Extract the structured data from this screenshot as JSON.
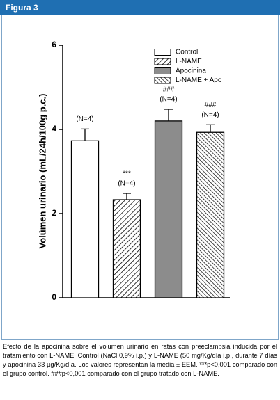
{
  "header": {
    "title": "Figura 3"
  },
  "chart_data": {
    "type": "bar",
    "y_label": "Volúmen urinario (mL/24h/100g p.c.)",
    "ylim": [
      0,
      6
    ],
    "yticks": [
      0,
      2,
      4,
      6
    ],
    "series": [
      {
        "name": "Control",
        "color": "#ffffff",
        "pattern": "solid",
        "values": [
          3.73
        ],
        "errors": [
          0.28
        ],
        "n_label": "(N=4)"
      },
      {
        "name": "L-NAME",
        "color": "#000000",
        "pattern": "hatch",
        "values": [
          2.33
        ],
        "errors": [
          0.15
        ],
        "n_label": "(N=4)",
        "significance": "***"
      },
      {
        "name": "Apocinina",
        "color": "#8c8c8c",
        "pattern": "solid",
        "values": [
          4.2
        ],
        "errors": [
          0.28
        ],
        "n_label": "(N=4)",
        "significance": "###"
      },
      {
        "name": "L-NAME + Apo",
        "color": "#000000",
        "pattern": "hatch-back",
        "values": [
          3.93
        ],
        "errors": [
          0.18
        ],
        "n_label": "(N=4)",
        "significance": "###"
      }
    ]
  },
  "caption": "Efecto de la apocinina sobre el volumen urinario en ratas con preeclampsia inducida por el tratamiento con L-NAME. Control (NaCl 0,9% i.p.) y L-NAME (50 mg/Kg/día i.p., durante 7 días y apocinina 33 µg/Kg/día. Los valores representan la media ± EEM. ***p<0,001 comparado con el grupo control. ###p<0,001 comparado con el grupo tratado con L-NAME."
}
